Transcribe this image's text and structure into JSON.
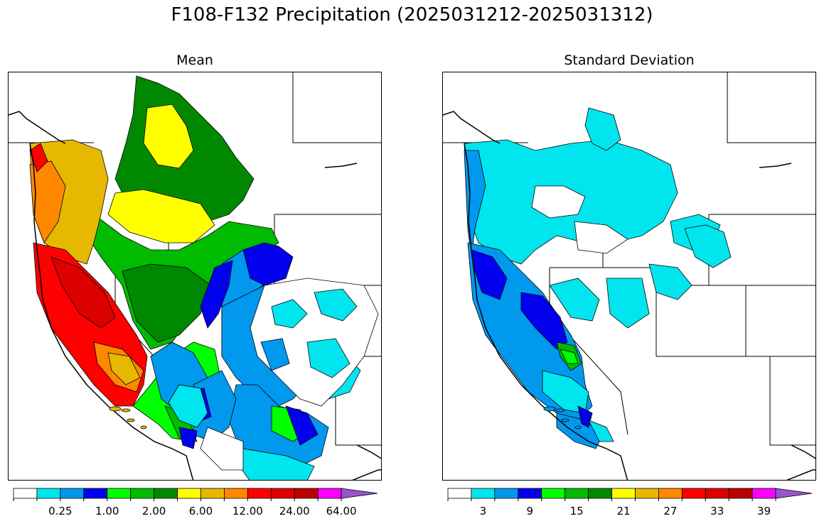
{
  "title": "F108-F132 Precipitation (2025031212-2025031312)",
  "panels": [
    {
      "id": "mean",
      "title": "Mean",
      "colorbar": {
        "colors": [
          "#ffffff",
          "#00e5ee",
          "#0099ee",
          "#0000ee",
          "#00ff00",
          "#00bb00",
          "#008800",
          "#ffff00",
          "#e6b800",
          "#ff8800",
          "#ff0000",
          "#dd0000",
          "#bb0000",
          "#ff00ff",
          "#9955cc"
        ],
        "tick_labels": [
          "0.25",
          "1.00",
          "2.00",
          "6.00",
          "12.00",
          "24.00",
          "64.00"
        ],
        "tick_label_bounds": [
          2,
          4,
          6,
          8,
          10,
          12,
          14
        ],
        "extend": "max"
      }
    },
    {
      "id": "std",
      "title": "Standard Deviation",
      "colorbar": {
        "colors": [
          "#ffffff",
          "#00e5ee",
          "#0099ee",
          "#0000ee",
          "#00ff00",
          "#00bb00",
          "#008800",
          "#ffff00",
          "#e6b800",
          "#ff8800",
          "#ff0000",
          "#dd0000",
          "#bb0000",
          "#ff00ff",
          "#9955cc"
        ],
        "tick_labels": [
          "3",
          "9",
          "15",
          "21",
          "27",
          "33",
          "39"
        ],
        "tick_label_bounds": [
          1.5,
          3.5,
          5.5,
          7.5,
          9.5,
          11.5,
          13.5
        ],
        "extend": "max"
      }
    }
  ]
}
